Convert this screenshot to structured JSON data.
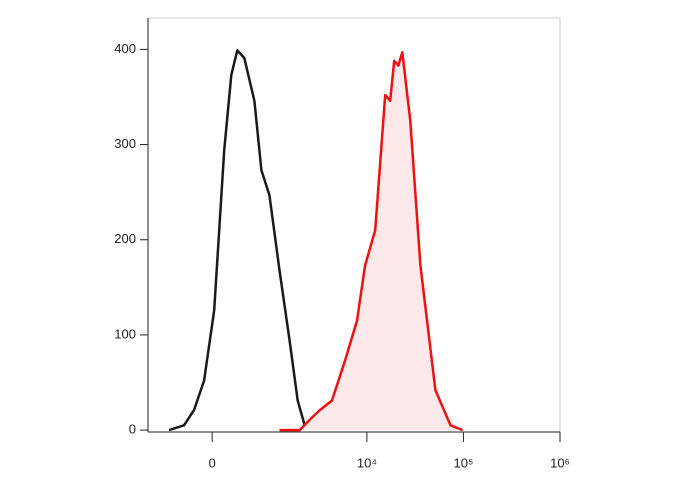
{
  "chart_data": {
    "type": "line",
    "xscale": "biexponential",
    "xlim": [
      -1100,
      1000000
    ],
    "xticks": [
      0,
      {
        "value": 10000,
        "label": "10⁴"
      },
      {
        "value": 100000,
        "label": "10⁵"
      },
      {
        "value": 1000000,
        "label": "10⁶"
      }
    ],
    "ylim": [
      -2,
      433
    ],
    "yticks": [
      0,
      100,
      200,
      300,
      400
    ],
    "series": [
      {
        "color": "#1a1a1a",
        "x": [
          -610,
          -361,
          -223,
          -97,
          24,
          146,
          236,
          318,
          422,
          594,
          731,
          916,
          1195,
          1545,
          1890,
          2245
        ],
        "values": [
          0,
          5,
          21,
          52,
          126,
          294,
          373,
          399,
          391,
          346,
          273,
          247,
          168,
          94,
          31,
          5
        ]
      },
      {
        "color": "#ee1111",
        "fill": "#fde8ea",
        "x": [
          1195,
          1984,
          2538,
          3233,
          4326,
          5925,
          7900,
          9580,
          12180,
          15480,
          17450,
          19200,
          21150,
          23300,
          28150,
          35800,
          51300,
          73500,
          98100
        ],
        "values": [
          0,
          0,
          11,
          21,
          31,
          73,
          115,
          173,
          210,
          352,
          346,
          388,
          383,
          397,
          325,
          173,
          42,
          5,
          0
        ]
      }
    ]
  }
}
